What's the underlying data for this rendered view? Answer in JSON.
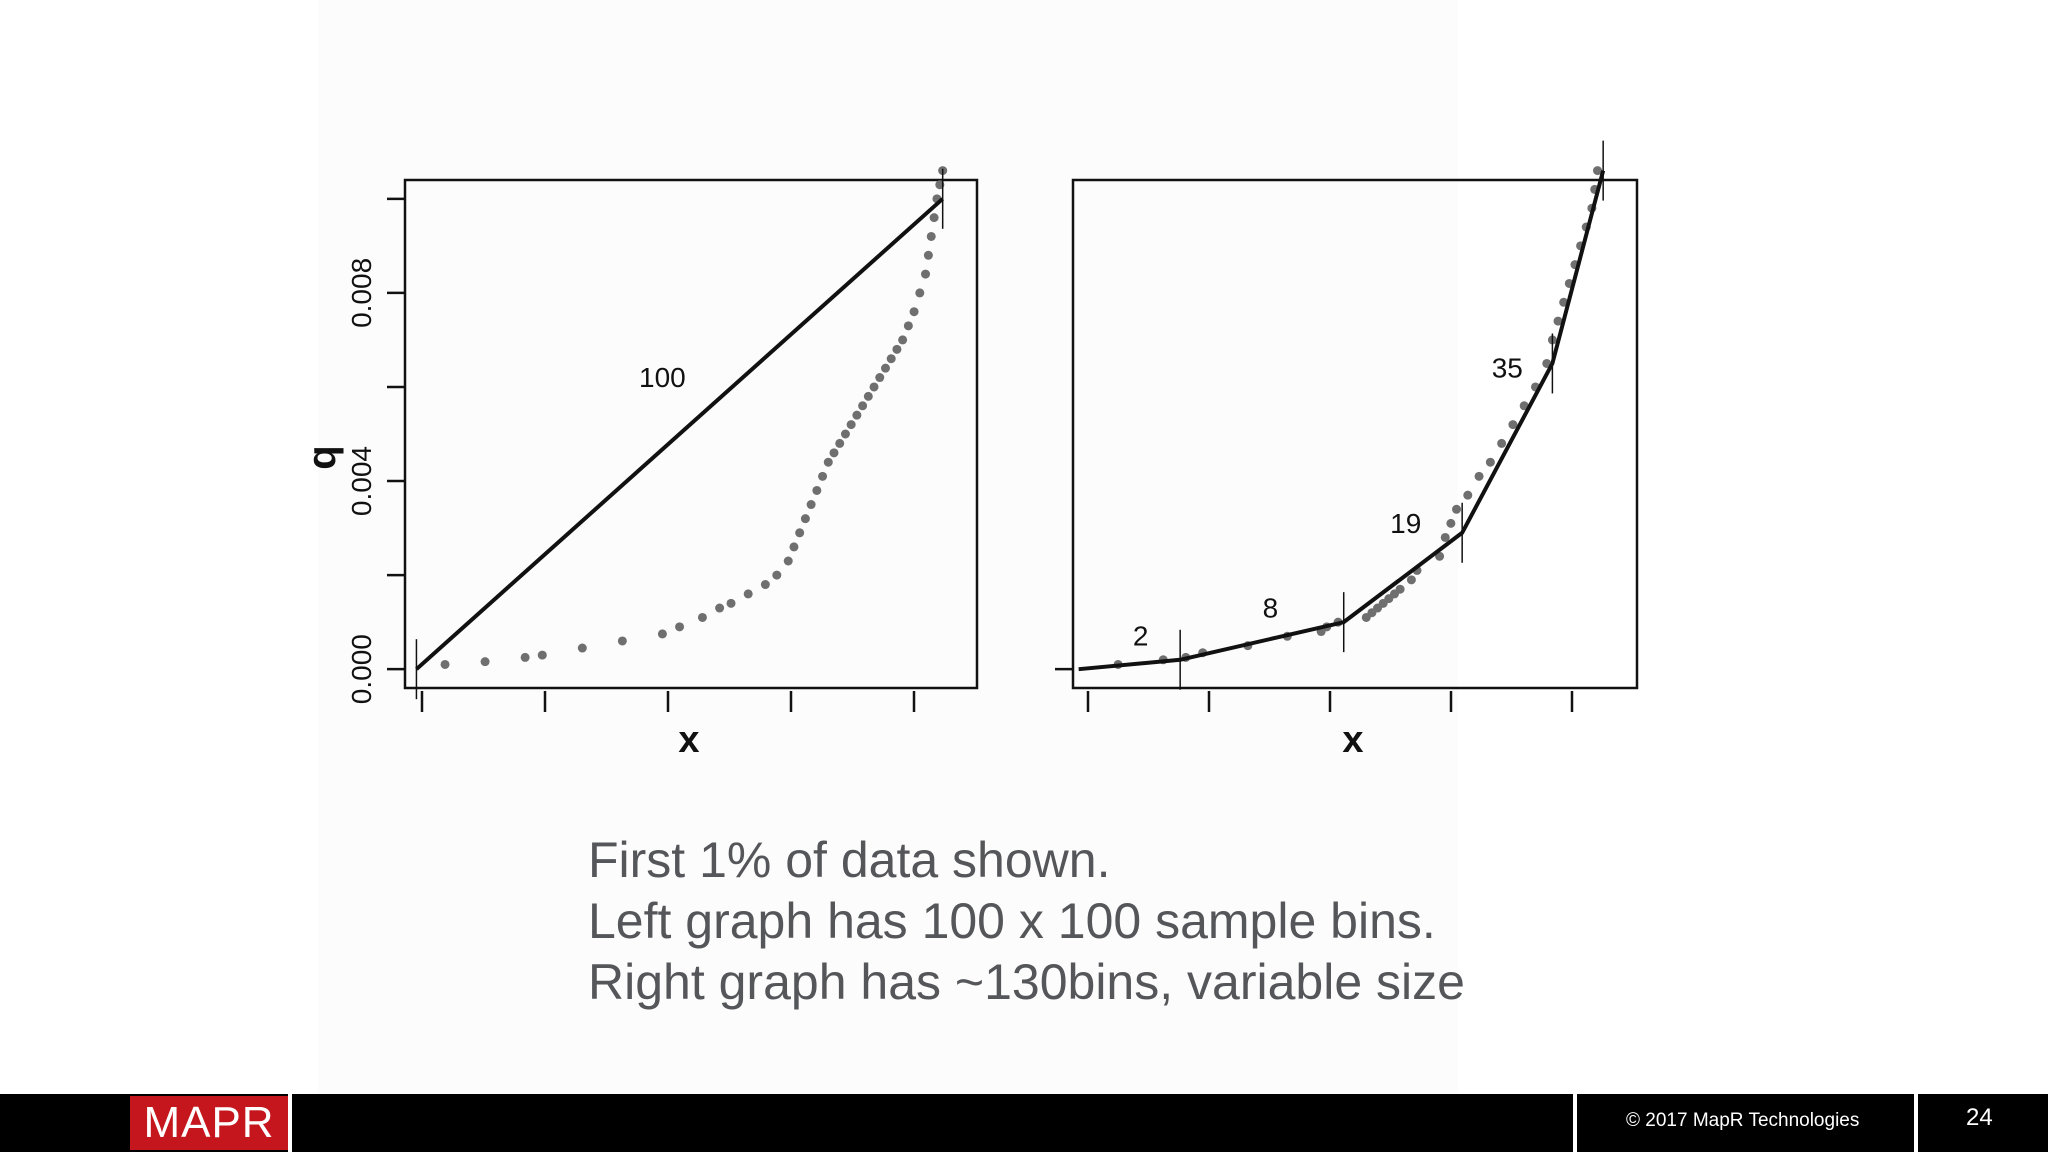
{
  "chart_data": [
    {
      "type": "scatter",
      "xlabel": "x",
      "ylabel": "q",
      "yticks": [
        "0.000",
        "0.004",
        "0.008"
      ],
      "ylim": [
        -0.0004,
        0.0104
      ],
      "xlim": [
        0,
        1.0
      ],
      "series": [
        {
          "kind": "points",
          "x": [
            0.07,
            0.14,
            0.21,
            0.24,
            0.31,
            0.38,
            0.45,
            0.48,
            0.52,
            0.55,
            0.57,
            0.6,
            0.63,
            0.65,
            0.67,
            0.68,
            0.69,
            0.7,
            0.71,
            0.72,
            0.73,
            0.74,
            0.75,
            0.76,
            0.77,
            0.78,
            0.79,
            0.8,
            0.81,
            0.82,
            0.83,
            0.84,
            0.85,
            0.86,
            0.87,
            0.88,
            0.89,
            0.9,
            0.91,
            0.915,
            0.92,
            0.925,
            0.93,
            0.935,
            0.94
          ],
          "y": [
            0.0001,
            0.00016,
            0.00025,
            0.0003,
            0.00045,
            0.0006,
            0.00075,
            0.0009,
            0.0011,
            0.0013,
            0.0014,
            0.0016,
            0.0018,
            0.002,
            0.0023,
            0.0026,
            0.0029,
            0.0032,
            0.0035,
            0.0038,
            0.0041,
            0.0044,
            0.0046,
            0.0048,
            0.005,
            0.0052,
            0.0054,
            0.0056,
            0.0058,
            0.006,
            0.0062,
            0.0064,
            0.0066,
            0.0068,
            0.007,
            0.0073,
            0.0076,
            0.008,
            0.0084,
            0.0088,
            0.0092,
            0.0096,
            0.01,
            0.0103,
            0.0106
          ]
        },
        {
          "kind": "line",
          "x": [
            0.02,
            0.94
          ],
          "y": [
            0.0,
            0.01
          ]
        }
      ],
      "annotations": [
        {
          "text": "100",
          "x": 0.45,
          "y": 0.006
        }
      ]
    },
    {
      "type": "scatter",
      "xlabel": "x",
      "ylim": [
        -0.0004,
        0.0104
      ],
      "xlim": [
        0,
        1.0
      ],
      "series": [
        {
          "kind": "points",
          "x": [
            0.08,
            0.16,
            0.2,
            0.23,
            0.31,
            0.38,
            0.44,
            0.45,
            0.47,
            0.52,
            0.53,
            0.54,
            0.55,
            0.56,
            0.57,
            0.58,
            0.6,
            0.61,
            0.65,
            0.66,
            0.67,
            0.68,
            0.7,
            0.72,
            0.74,
            0.76,
            0.78,
            0.8,
            0.82,
            0.84,
            0.85,
            0.86,
            0.87,
            0.88,
            0.89,
            0.9,
            0.91,
            0.92,
            0.925,
            0.93
          ],
          "y": [
            0.0001,
            0.0002,
            0.00025,
            0.00035,
            0.0005,
            0.0007,
            0.0008,
            0.0009,
            0.001,
            0.0011,
            0.0012,
            0.0013,
            0.0014,
            0.0015,
            0.0016,
            0.0017,
            0.0019,
            0.0021,
            0.0024,
            0.0028,
            0.0031,
            0.0034,
            0.0037,
            0.0041,
            0.0044,
            0.0048,
            0.0052,
            0.0056,
            0.006,
            0.0065,
            0.007,
            0.0074,
            0.0078,
            0.0082,
            0.0086,
            0.009,
            0.0094,
            0.0098,
            0.0102,
            0.0106
          ]
        },
        {
          "kind": "line",
          "x": [
            0.01,
            0.19,
            0.48,
            0.69,
            0.85,
            0.94
          ],
          "y": [
            0.0,
            0.0002,
            0.001,
            0.0029,
            0.0065,
            0.0106
          ]
        }
      ],
      "annotations": [
        {
          "text": "2",
          "x": 0.12,
          "y": 0.0005
        },
        {
          "text": "8",
          "x": 0.35,
          "y": 0.0011
        },
        {
          "text": "19",
          "x": 0.59,
          "y": 0.0029
        },
        {
          "text": "35",
          "x": 0.77,
          "y": 0.0062
        }
      ]
    }
  ],
  "caption": {
    "line1": "First 1% of data shown.",
    "line2": "Left graph has 100 x 100 sample bins.",
    "line3": "Right graph has ~130bins, variable size"
  },
  "footer": {
    "logo": "MAPR",
    "copyright": "© 2017 MapR Technologies",
    "slide_number": "24"
  },
  "colors": {
    "logo_bg": "#c4161c",
    "point": "#6f6f6f",
    "caption": "#55565a"
  }
}
